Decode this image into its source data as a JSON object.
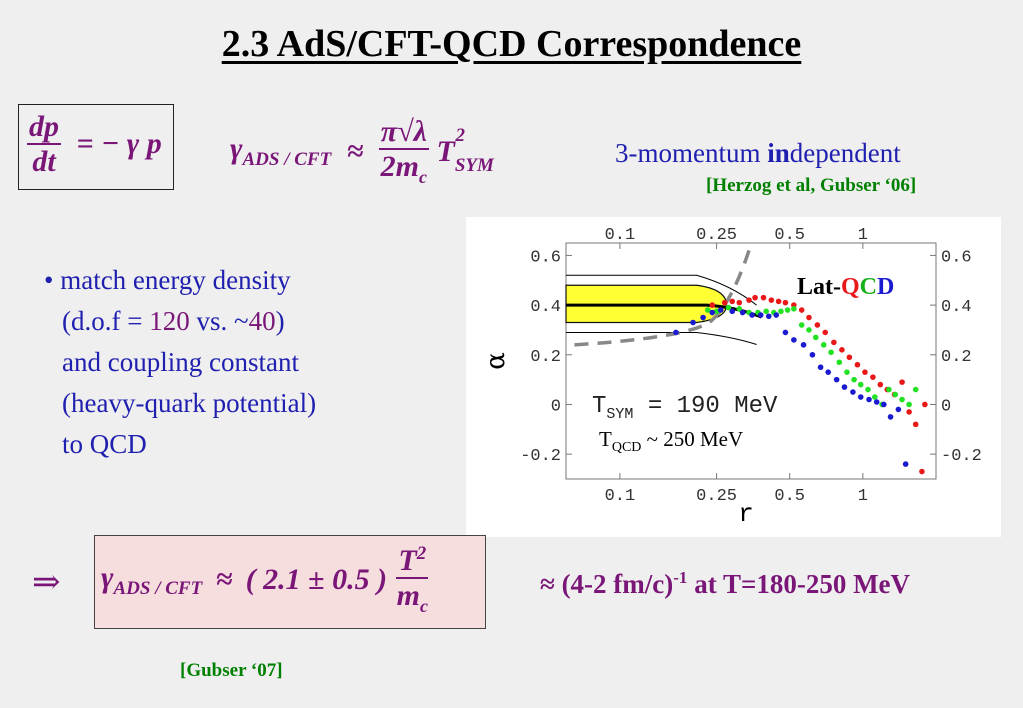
{
  "slide": {
    "title": "2.3 AdS/CFT-QCD Correspondence",
    "eq1": {
      "num": "dp",
      "den": "dt",
      "rhs": "= − γ p"
    },
    "eq2": {
      "gamma": "γ",
      "sub": "ADS / CFT",
      "approx": "≈",
      "num": "π√λ",
      "den": "2m",
      "den_sub": "c",
      "T": "T",
      "T_sup": "2",
      "T_sub": "SYM"
    },
    "momentum_note": {
      "prefix": "3-momentum ",
      "bold": "in",
      "suffix": "dependent"
    },
    "citation1": "[Herzog et al, Gubser ‘06]",
    "bullets": [
      {
        "text": "• match energy density"
      },
      {
        "pre": "(d.o.f = ",
        "hl1": "120",
        "mid": " vs. ~",
        "hl2": "40",
        "post": ")"
      },
      {
        "text": "and coupling constant"
      },
      {
        "text": "(heavy-quark potential)"
      },
      {
        "text": "to QCD"
      }
    ],
    "implies": "⇒",
    "eq3": {
      "gamma": "γ",
      "sub": "ADS / CFT",
      "approx": "≈",
      "coef": "( 2.1 ± 0.5 )",
      "num": "T",
      "num_sup": "2",
      "den": "m",
      "den_sub": "c"
    },
    "rate": {
      "pre": "≈ (4-2 fm/c)",
      "sup": "-1",
      "post": " at T=180-250 MeV"
    },
    "citation2": "[Gubser ‘07]"
  },
  "chart_data": {
    "type": "scatter",
    "xlabel": "r",
    "ylabel": "α",
    "x_ticks": [
      "0.1",
      "0.25",
      "0.5",
      "1"
    ],
    "y_ticks": [
      "0.6",
      "0.4",
      "0.2",
      "0",
      "-0.2"
    ],
    "ylim": [
      -0.3,
      0.65
    ],
    "legend_label": {
      "pre": "Lat-",
      "Q": "Q",
      "C": "C",
      "D": "D"
    },
    "annotations": {
      "tsym": {
        "pre": "T",
        "sub": "SYM",
        "post": " = 190 MeV"
      },
      "tqcd": {
        "pre": "T",
        "sub": "QCD",
        "post": " ~ 250 MeV"
      }
    },
    "colors": {
      "band": "#ffff33",
      "red": "#e81818",
      "green": "#22e022",
      "blue": "#1a1ad0",
      "dash": "#888888"
    },
    "band": {
      "x": [
        0.06,
        0.25
      ],
      "center": 0.4,
      "upper": 0.48,
      "lower": 0.33
    },
    "series": [
      {
        "color": "red",
        "points": [
          [
            0.24,
            0.4
          ],
          [
            0.27,
            0.41
          ],
          [
            0.29,
            0.415
          ],
          [
            0.31,
            0.41
          ],
          [
            0.34,
            0.42
          ],
          [
            0.36,
            0.43
          ],
          [
            0.39,
            0.43
          ],
          [
            0.42,
            0.42
          ],
          [
            0.45,
            0.415
          ],
          [
            0.48,
            0.41
          ],
          [
            0.52,
            0.4
          ],
          [
            0.56,
            0.38
          ],
          [
            0.6,
            0.35
          ],
          [
            0.65,
            0.32
          ],
          [
            0.7,
            0.29
          ],
          [
            0.76,
            0.25
          ],
          [
            0.82,
            0.22
          ],
          [
            0.88,
            0.19
          ],
          [
            0.95,
            0.16
          ],
          [
            1.02,
            0.13
          ],
          [
            1.1,
            0.11
          ],
          [
            1.18,
            0.08
          ],
          [
            1.26,
            0.06
          ],
          [
            1.35,
            0.04
          ],
          [
            1.45,
            0.09
          ],
          [
            1.55,
            -0.03
          ],
          [
            1.65,
            -0.08
          ],
          [
            1.75,
            -0.27
          ],
          [
            1.8,
            0.0
          ]
        ]
      },
      {
        "color": "green",
        "points": [
          [
            0.23,
            0.38
          ],
          [
            0.25,
            0.375
          ],
          [
            0.28,
            0.39
          ],
          [
            0.31,
            0.385
          ],
          [
            0.34,
            0.37
          ],
          [
            0.37,
            0.37
          ],
          [
            0.4,
            0.375
          ],
          [
            0.43,
            0.37
          ],
          [
            0.46,
            0.375
          ],
          [
            0.49,
            0.38
          ],
          [
            0.52,
            0.385
          ],
          [
            0.56,
            0.32
          ],
          [
            0.6,
            0.3
          ],
          [
            0.64,
            0.27
          ],
          [
            0.69,
            0.24
          ],
          [
            0.74,
            0.21
          ],
          [
            0.8,
            0.17
          ],
          [
            0.86,
            0.13
          ],
          [
            0.92,
            0.1
          ],
          [
            0.98,
            0.08
          ],
          [
            1.05,
            0.06
          ],
          [
            1.12,
            0.03
          ],
          [
            1.2,
            0.0
          ],
          [
            1.28,
            0.06
          ],
          [
            1.36,
            0.04
          ],
          [
            1.45,
            0.02
          ],
          [
            1.55,
            0.0
          ],
          [
            1.65,
            0.06
          ]
        ]
      },
      {
        "color": "blue",
        "points": [
          [
            0.17,
            0.29
          ],
          [
            0.2,
            0.33
          ],
          [
            0.22,
            0.35
          ],
          [
            0.24,
            0.37
          ],
          [
            0.26,
            0.38
          ],
          [
            0.29,
            0.375
          ],
          [
            0.32,
            0.37
          ],
          [
            0.35,
            0.36
          ],
          [
            0.38,
            0.36
          ],
          [
            0.41,
            0.355
          ],
          [
            0.44,
            0.36
          ],
          [
            0.48,
            0.29
          ],
          [
            0.52,
            0.26
          ],
          [
            0.57,
            0.24
          ],
          [
            0.62,
            0.2
          ],
          [
            0.67,
            0.15
          ],
          [
            0.72,
            0.13
          ],
          [
            0.78,
            0.1
          ],
          [
            0.84,
            0.07
          ],
          [
            0.91,
            0.05
          ],
          [
            0.98,
            0.03
          ],
          [
            1.06,
            0.02
          ],
          [
            1.14,
            0.01
          ],
          [
            1.22,
            0.0
          ],
          [
            1.3,
            -0.05
          ],
          [
            1.4,
            -0.02
          ],
          [
            1.5,
            -0.24
          ]
        ]
      }
    ]
  }
}
